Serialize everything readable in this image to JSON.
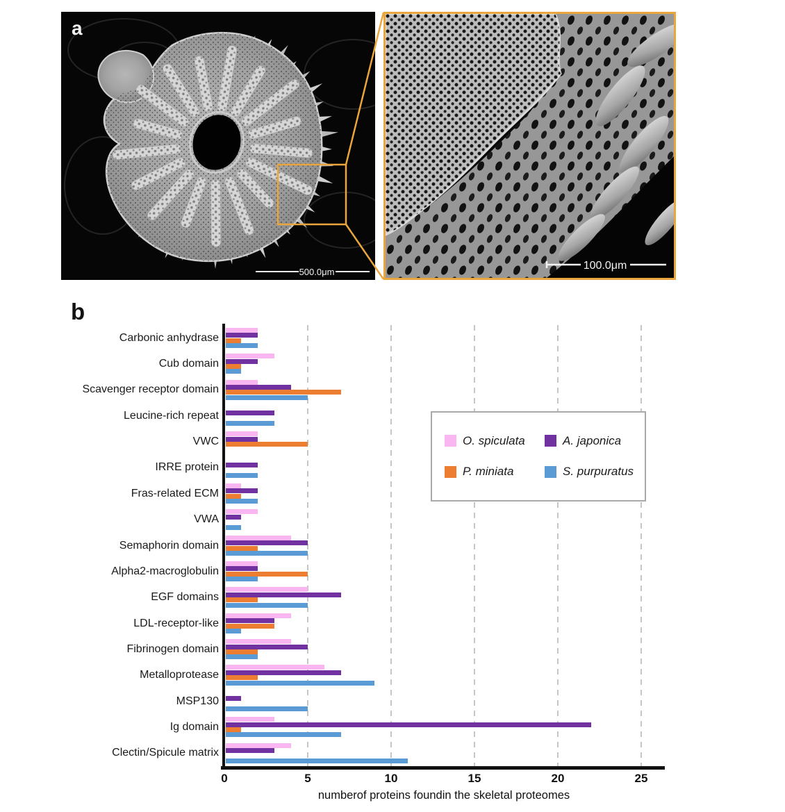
{
  "figure": {
    "panel_a": {
      "label": "a",
      "main_scale_bar": "500.0μm",
      "inset_scale_bar": "100.0μm"
    },
    "panel_b": {
      "label": "b"
    }
  },
  "chart_data": {
    "type": "bar",
    "orientation": "horizontal",
    "title": "",
    "xlabel": "numberof proteins foundin the skeletal proteomes",
    "ylabel": "",
    "xlim": [
      0,
      26.5
    ],
    "xticks": [
      0,
      5,
      10,
      15,
      20,
      25
    ],
    "grid": "vertical dashed",
    "legend_position": "inside upper right",
    "categories": [
      "Carbonic anhydrase",
      "Cub domain",
      "Scavenger receptor domain",
      "Leucine-rich repeat",
      "VWC",
      "IRRE protein",
      "Fras-related ECM",
      "VWA",
      "Semaphorin domain",
      "Alpha2-macroglobulin",
      "EGF domains",
      "LDL-receptor-like",
      "Fibrinogen domain",
      "Metalloprotease",
      "MSP130",
      "Ig domain",
      "Clectin/Spicule matrix"
    ],
    "series": [
      {
        "name": "O. spiculata",
        "color": "#F9B6F0",
        "values": [
          2,
          3,
          2,
          0,
          2,
          0,
          1,
          2,
          4,
          2,
          5,
          4,
          4,
          6,
          0,
          3,
          4
        ]
      },
      {
        "name": "A. japonica",
        "color": "#7231A0",
        "values": [
          2,
          2,
          4,
          3,
          2,
          2,
          2,
          1,
          5,
          2,
          7,
          3,
          5,
          7,
          1,
          22,
          3
        ]
      },
      {
        "name": "P. miniata",
        "color": "#ED7D31",
        "values": [
          1,
          1,
          7,
          0,
          5,
          0,
          1,
          0,
          2,
          5,
          2,
          3,
          2,
          2,
          0,
          1,
          0
        ]
      },
      {
        "name": "S. purpuratus",
        "color": "#5B9BD5",
        "values": [
          2,
          1,
          5,
          3,
          0,
          2,
          2,
          1,
          5,
          2,
          5,
          1,
          2,
          9,
          5,
          7,
          11
        ]
      }
    ]
  }
}
